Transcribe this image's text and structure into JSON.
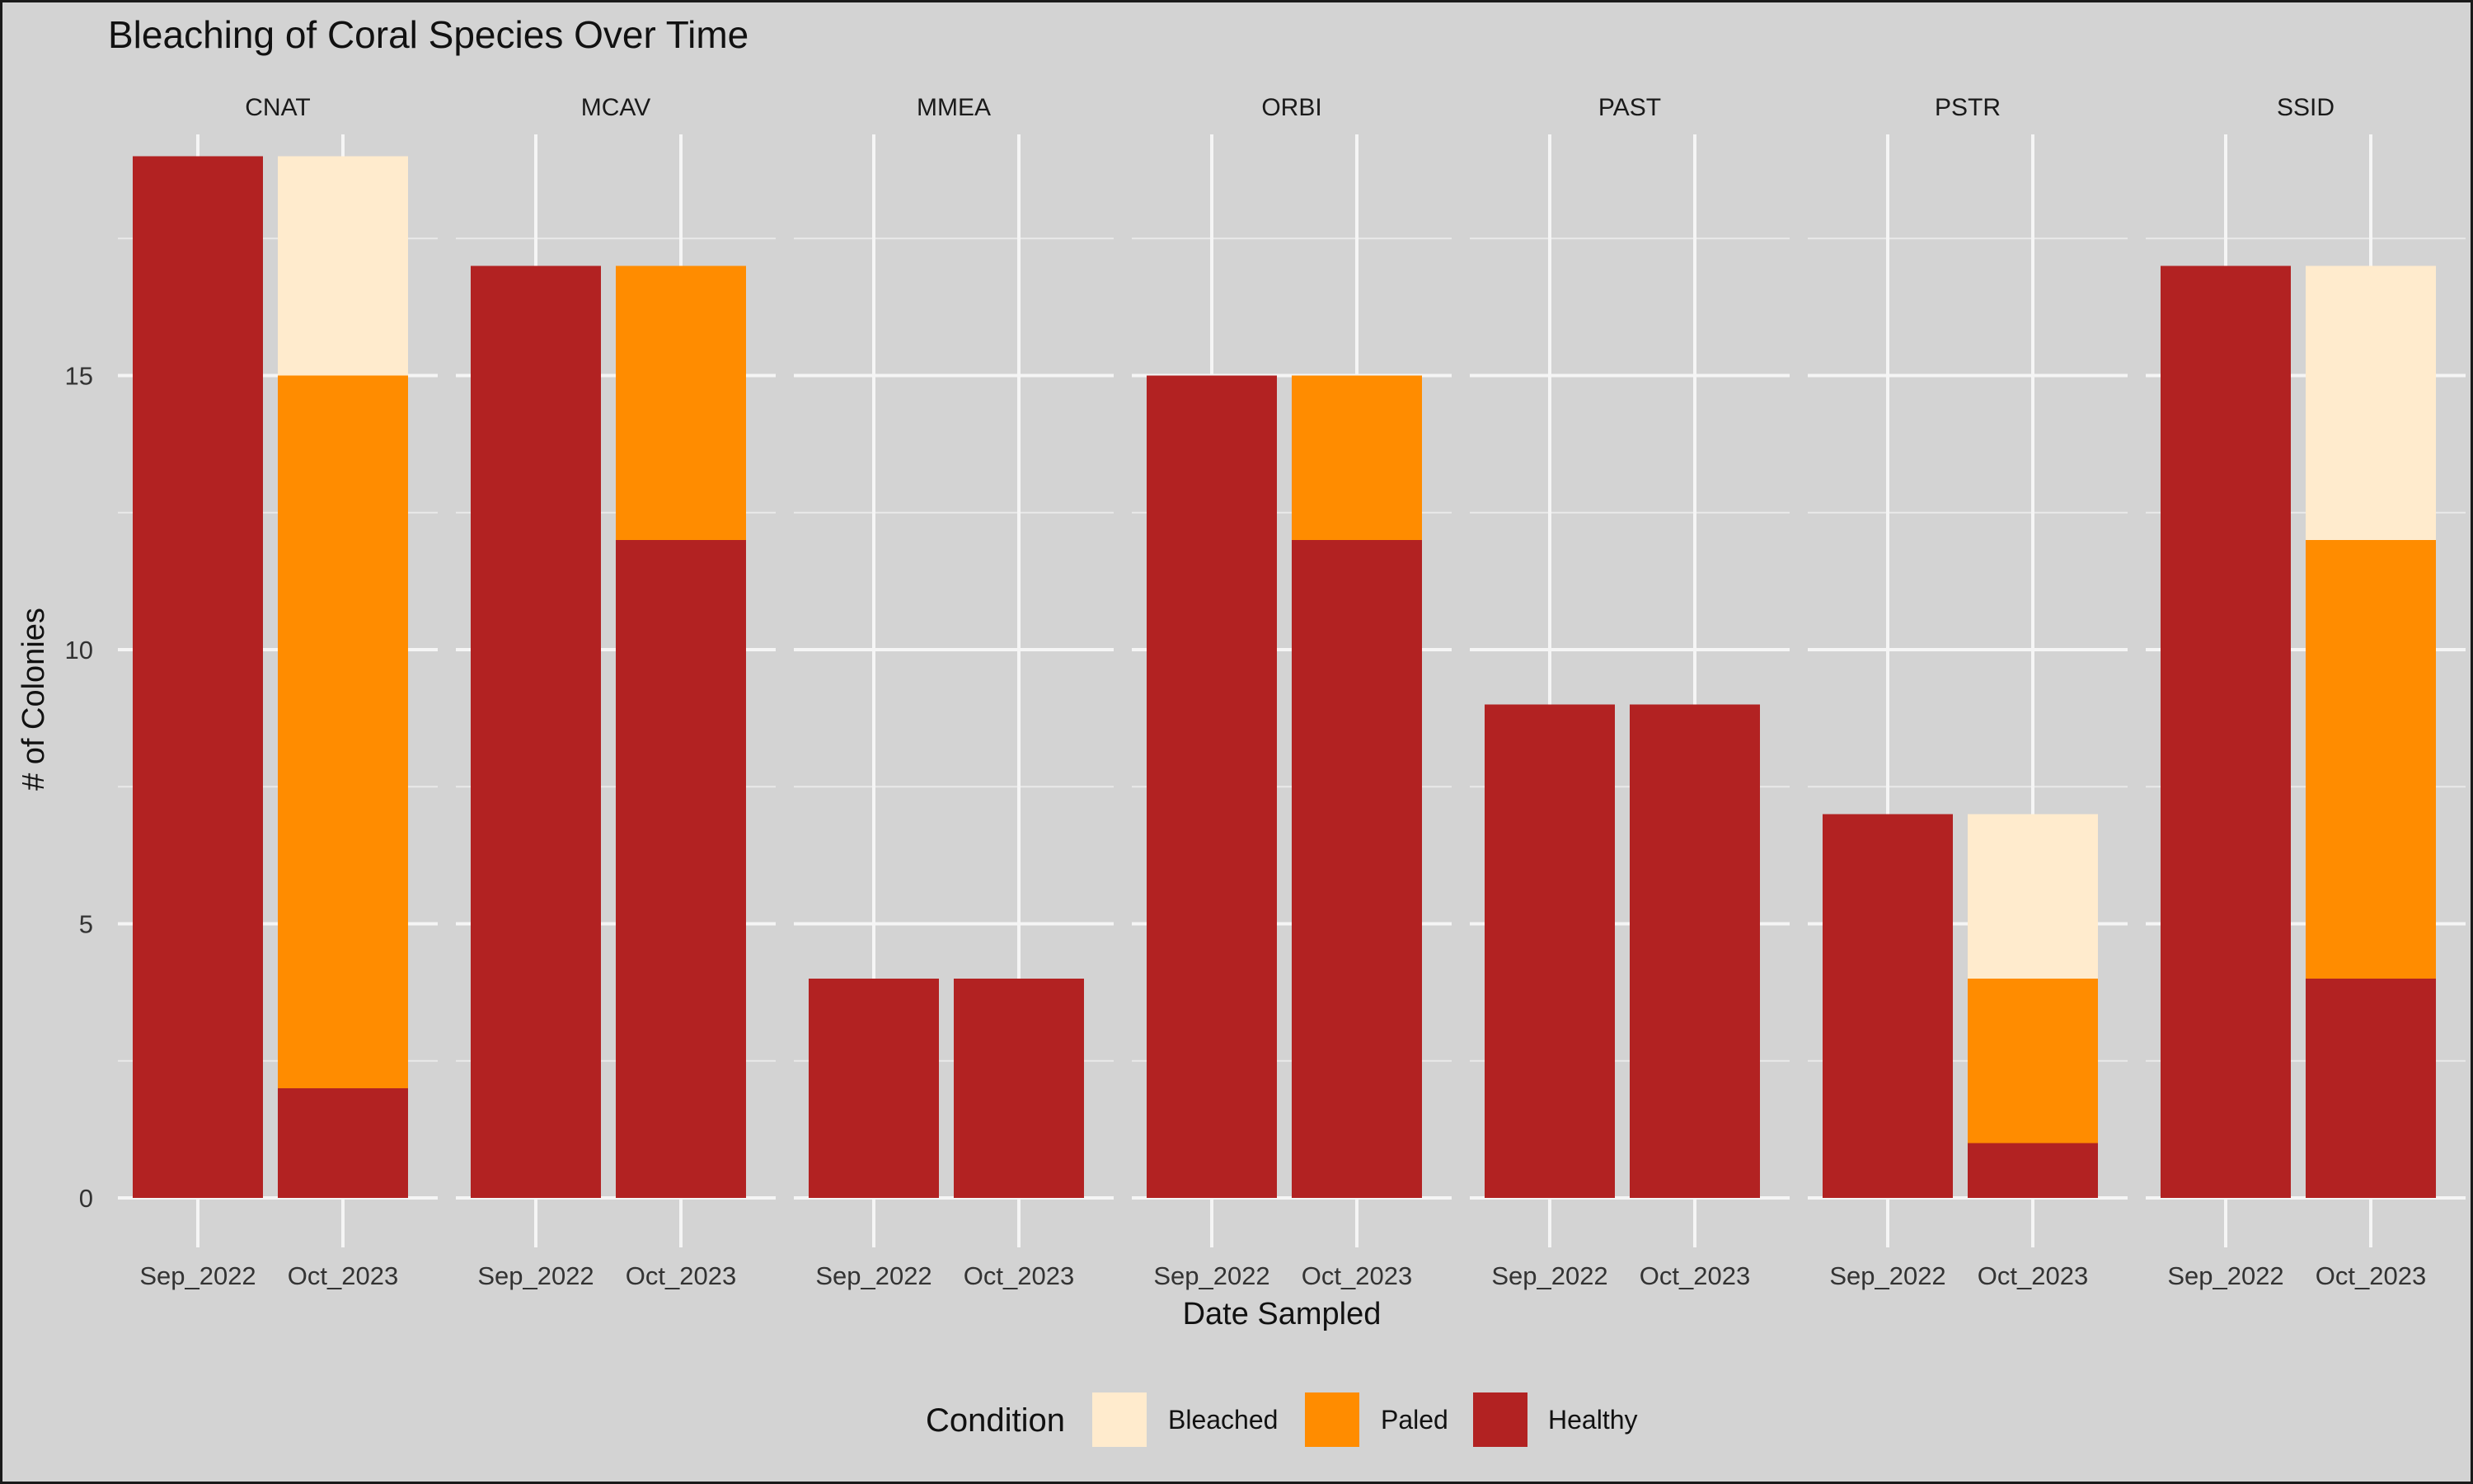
{
  "chart_data": {
    "type": "bar",
    "stacked": true,
    "faceted_by": "species",
    "title": "Bleaching of Coral Species Over Time",
    "xlabel": "Date Sampled",
    "ylabel": "# of Colonies",
    "ylim": [
      0,
      20
    ],
    "yticks": [
      0,
      5,
      10,
      15
    ],
    "grid": true,
    "legend": {
      "title": "Condition",
      "position": "bottom",
      "entries": [
        {
          "name": "Bleached",
          "color": "#FFEBCD"
        },
        {
          "name": "Paled",
          "color": "#FF8C00"
        },
        {
          "name": "Healthy",
          "color": "#B22222"
        }
      ]
    },
    "categories": [
      "Sep_2022",
      "Oct_2023"
    ],
    "stack_order_bottom_to_top": [
      "Healthy",
      "Paled",
      "Bleached"
    ],
    "facets": [
      {
        "name": "CNAT",
        "bars": [
          {
            "category": "Sep_2022",
            "Healthy": 19,
            "Paled": 0,
            "Bleached": 0
          },
          {
            "category": "Oct_2023",
            "Healthy": 2,
            "Paled": 13,
            "Bleached": 4
          }
        ]
      },
      {
        "name": "MCAV",
        "bars": [
          {
            "category": "Sep_2022",
            "Healthy": 17,
            "Paled": 0,
            "Bleached": 0
          },
          {
            "category": "Oct_2023",
            "Healthy": 12,
            "Paled": 5,
            "Bleached": 0
          }
        ]
      },
      {
        "name": "MMEA",
        "bars": [
          {
            "category": "Sep_2022",
            "Healthy": 4,
            "Paled": 0,
            "Bleached": 0
          },
          {
            "category": "Oct_2023",
            "Healthy": 4,
            "Paled": 0,
            "Bleached": 0
          }
        ]
      },
      {
        "name": "ORBI",
        "bars": [
          {
            "category": "Sep_2022",
            "Healthy": 15,
            "Paled": 0,
            "Bleached": 0
          },
          {
            "category": "Oct_2023",
            "Healthy": 12,
            "Paled": 3,
            "Bleached": 0
          }
        ]
      },
      {
        "name": "PAST",
        "bars": [
          {
            "category": "Sep_2022",
            "Healthy": 9,
            "Paled": 0,
            "Bleached": 0
          },
          {
            "category": "Oct_2023",
            "Healthy": 9,
            "Paled": 0,
            "Bleached": 0
          }
        ]
      },
      {
        "name": "PSTR",
        "bars": [
          {
            "category": "Sep_2022",
            "Healthy": 7,
            "Paled": 0,
            "Bleached": 0
          },
          {
            "category": "Oct_2023",
            "Healthy": 1,
            "Paled": 3,
            "Bleached": 3
          }
        ]
      },
      {
        "name": "SSID",
        "bars": [
          {
            "category": "Sep_2022",
            "Healthy": 17,
            "Paled": 0,
            "Bleached": 0
          },
          {
            "category": "Oct_2023",
            "Healthy": 4,
            "Paled": 8,
            "Bleached": 5
          }
        ]
      }
    ]
  }
}
